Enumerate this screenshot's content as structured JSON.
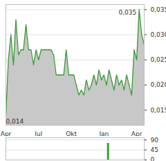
{
  "chart_data": [
    {
      "type": "area",
      "categories": [
        "Apr",
        null,
        null,
        null,
        null,
        null,
        null,
        null,
        null,
        null,
        null,
        null,
        null,
        "Jul",
        null,
        null,
        null,
        null,
        null,
        null,
        null,
        null,
        null,
        null,
        null,
        null,
        "Okt",
        null,
        null,
        null,
        null,
        null,
        null,
        null,
        null,
        null,
        null,
        null,
        null,
        "Jan",
        null,
        null,
        null,
        null,
        null,
        null,
        null,
        null,
        null,
        null,
        null,
        null,
        "Apr",
        null,
        null,
        null
      ],
      "values": [
        0.014,
        0.025,
        0.03,
        0.024,
        0.033,
        0.026,
        0.027,
        0.027,
        0.032,
        0.027,
        0.027,
        0.024,
        0.027,
        0.025,
        0.027,
        0.027,
        0.027,
        0.027,
        0.027,
        0.026,
        0.022,
        0.022,
        0.022,
        0.022,
        0.027,
        0.022,
        0.022,
        0.022,
        0.02,
        0.018,
        0.019,
        0.018,
        0.021,
        0.019,
        0.02,
        0.022,
        0.02,
        0.023,
        0.021,
        0.022,
        0.02,
        0.023,
        0.021,
        0.019,
        0.022,
        0.02,
        0.021,
        0.019,
        0.022,
        0.02,
        0.018,
        0.027,
        0.025,
        0.035,
        0.03,
        0.028
      ],
      "color": "#3a9a3a",
      "ylim": [
        0.012,
        0.036
      ],
      "yticks": [
        {
          "value": 0.015,
          "label": "0,015"
        },
        {
          "value": 0.02,
          "label": "0,020"
        },
        {
          "value": 0.025,
          "label": "0,025"
        },
        {
          "value": 0.03,
          "label": "0,030"
        },
        {
          "value": 0.035,
          "label": "0,035"
        }
      ],
      "grid": true,
      "annotations": [
        {
          "label": "0,014",
          "value": 0.014
        },
        {
          "label": "0,035",
          "value": 0.035
        }
      ]
    },
    {
      "type": "bar",
      "categories": [
        "Apr",
        null,
        null,
        null,
        null,
        null,
        null,
        null,
        null,
        null,
        null,
        null,
        null,
        "Jul",
        null,
        null,
        null,
        null,
        null,
        null,
        null,
        null,
        null,
        null,
        null,
        null,
        "Okt",
        null,
        null,
        null,
        null,
        null,
        null,
        null,
        null,
        null,
        null,
        null,
        null,
        "Jan",
        null,
        null,
        null,
        null,
        null,
        null,
        null,
        null,
        null,
        null,
        null,
        null,
        "Apr",
        null,
        null,
        null
      ],
      "values": [
        0,
        0,
        0,
        0,
        0,
        0,
        0,
        0,
        0,
        0,
        0,
        0,
        0,
        0,
        0,
        0,
        0,
        0,
        0,
        0,
        0,
        0,
        0,
        0,
        0,
        0,
        0,
        0,
        0,
        0,
        0,
        0,
        0,
        0,
        0,
        0,
        0,
        0,
        0,
        0,
        0,
        75,
        0,
        0,
        0,
        0,
        0,
        0,
        0,
        0,
        0,
        0,
        0,
        0,
        0,
        0
      ],
      "color": "#3a9a3a",
      "ylim": [
        0,
        100
      ],
      "yticks": [
        0,
        45,
        90
      ],
      "grid": true,
      "tick_labels": "y"
    }
  ]
}
